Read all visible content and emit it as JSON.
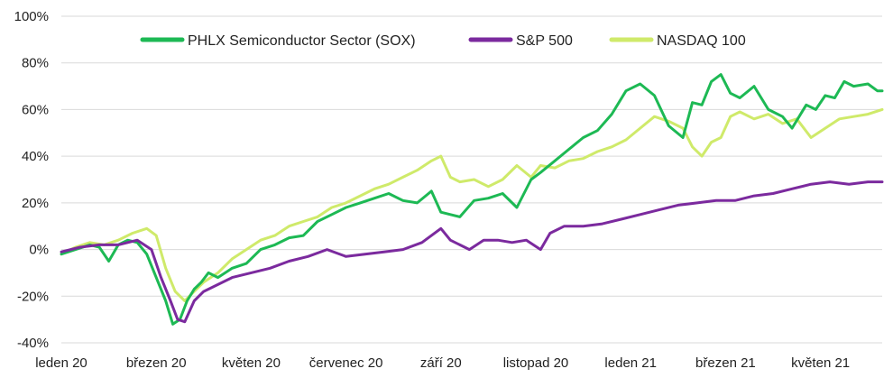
{
  "chart_data": {
    "type": "line",
    "title": "",
    "xlabel": "",
    "ylabel": "",
    "ylim": [
      -40,
      100
    ],
    "y_ticks": [
      "100%",
      "80%",
      "60%",
      "40%",
      "20%",
      "0%",
      "-20%",
      "-40%"
    ],
    "y_tick_values": [
      100,
      80,
      60,
      40,
      20,
      0,
      -20,
      -40
    ],
    "x_range": [
      0,
      17.3
    ],
    "x_ticks": [
      "leden 20",
      "březen 20",
      "květen 20",
      "červenec 20",
      "září 20",
      "listopad 20",
      "leden 21",
      "březen 21",
      "květen 21"
    ],
    "x_tick_positions": [
      0,
      2,
      4,
      6,
      8,
      10,
      12,
      14,
      16
    ],
    "grid": "horizontal",
    "legend_position": "top",
    "x_unit": "months since January 2020",
    "series": [
      {
        "name": "PHLX Semiconductor Sector (SOX)",
        "color": "#1DB954",
        "x": [
          0,
          0.3,
          0.6,
          0.8,
          1.0,
          1.2,
          1.4,
          1.6,
          1.8,
          2.0,
          2.2,
          2.35,
          2.5,
          2.65,
          2.8,
          2.95,
          3.1,
          3.3,
          3.6,
          3.9,
          4.2,
          4.5,
          4.8,
          5.1,
          5.4,
          5.7,
          6.0,
          6.3,
          6.6,
          6.9,
          7.2,
          7.5,
          7.8,
          8.0,
          8.2,
          8.4,
          8.7,
          9.0,
          9.3,
          9.6,
          9.9,
          10.1,
          10.4,
          10.7,
          11.0,
          11.3,
          11.6,
          11.9,
          12.2,
          12.5,
          12.8,
          13.1,
          13.3,
          13.5,
          13.7,
          13.9,
          14.1,
          14.3,
          14.6,
          14.9,
          15.2,
          15.4,
          15.7,
          15.9,
          16.1,
          16.3,
          16.5,
          16.7,
          17.0,
          17.2,
          17.3
        ],
        "values": [
          -2,
          0,
          2,
          1,
          -5,
          2,
          4,
          3,
          -2,
          -12,
          -22,
          -32,
          -30,
          -22,
          -17,
          -14,
          -10,
          -12,
          -8,
          -6,
          0,
          2,
          5,
          6,
          12,
          15,
          18,
          20,
          22,
          24,
          21,
          20,
          25,
          16,
          15,
          14,
          21,
          22,
          24,
          18,
          30,
          33,
          38,
          43,
          48,
          51,
          58,
          68,
          71,
          66,
          53,
          48,
          63,
          62,
          72,
          75,
          67,
          65,
          70,
          60,
          57,
          52,
          62,
          60,
          66,
          65,
          72,
          70,
          71,
          68,
          68
        ]
      },
      {
        "name": "S&P 500",
        "color": "#7B2A9E",
        "x": [
          0,
          0.4,
          0.8,
          1.2,
          1.6,
          1.9,
          2.1,
          2.3,
          2.45,
          2.6,
          2.8,
          3.0,
          3.3,
          3.6,
          4.0,
          4.4,
          4.8,
          5.2,
          5.6,
          6.0,
          6.4,
          6.8,
          7.2,
          7.6,
          8.0,
          8.2,
          8.4,
          8.6,
          8.9,
          9.2,
          9.5,
          9.8,
          10.1,
          10.3,
          10.6,
          11.0,
          11.4,
          11.8,
          12.2,
          12.6,
          13.0,
          13.4,
          13.8,
          14.2,
          14.6,
          15.0,
          15.4,
          15.8,
          16.2,
          16.6,
          17.0,
          17.2,
          17.3
        ],
        "values": [
          -1,
          1,
          2,
          2,
          4,
          0,
          -12,
          -22,
          -30,
          -31,
          -22,
          -18,
          -15,
          -12,
          -10,
          -8,
          -5,
          -3,
          0,
          -3,
          -2,
          -1,
          0,
          3,
          9,
          4,
          2,
          0,
          4,
          4,
          3,
          4,
          0,
          7,
          10,
          10,
          11,
          13,
          15,
          17,
          19,
          20,
          21,
          21,
          23,
          24,
          26,
          28,
          29,
          28,
          29,
          29,
          29
        ]
      },
      {
        "name": "NASDAQ 100",
        "color": "#CFEA6A",
        "x": [
          0,
          0.3,
          0.6,
          0.9,
          1.2,
          1.5,
          1.8,
          2.0,
          2.2,
          2.4,
          2.6,
          2.8,
          3.0,
          3.3,
          3.6,
          3.9,
          4.2,
          4.5,
          4.8,
          5.1,
          5.4,
          5.7,
          6.0,
          6.3,
          6.6,
          6.9,
          7.2,
          7.5,
          7.8,
          8.0,
          8.2,
          8.4,
          8.7,
          9.0,
          9.3,
          9.6,
          9.9,
          10.1,
          10.4,
          10.7,
          11.0,
          11.3,
          11.6,
          11.9,
          12.2,
          12.5,
          12.8,
          13.1,
          13.3,
          13.5,
          13.7,
          13.9,
          14.1,
          14.3,
          14.6,
          14.9,
          15.2,
          15.5,
          15.8,
          16.1,
          16.4,
          16.7,
          17.0,
          17.3
        ],
        "values": [
          -2,
          1,
          3,
          2,
          4,
          7,
          9,
          6,
          -8,
          -18,
          -22,
          -18,
          -14,
          -10,
          -4,
          0,
          4,
          6,
          10,
          12,
          14,
          18,
          20,
          23,
          26,
          28,
          31,
          34,
          38,
          40,
          31,
          29,
          30,
          27,
          30,
          36,
          31,
          36,
          35,
          38,
          39,
          42,
          44,
          47,
          52,
          57,
          55,
          52,
          44,
          40,
          46,
          48,
          57,
          59,
          56,
          58,
          54,
          56,
          48,
          52,
          56,
          57,
          58,
          60
        ]
      }
    ]
  }
}
